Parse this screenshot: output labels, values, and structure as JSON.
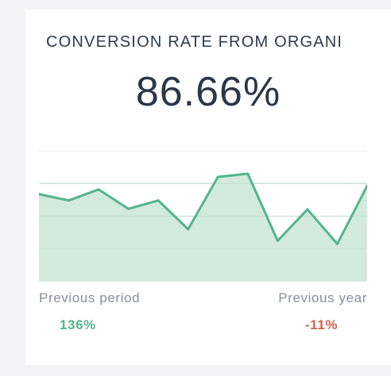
{
  "widget": {
    "title": "CONVERSION RATE FROM ORGANI",
    "value": "86.66%"
  },
  "comparison": {
    "previous_period_label": "Previous period",
    "previous_period_value": "136%",
    "previous_year_label": "Previous year",
    "previous_year_value": "-11%"
  },
  "chart_data": {
    "type": "area",
    "x": [
      0,
      1,
      2,
      3,
      4,
      5,
      6,
      7,
      8,
      9,
      10,
      11
    ],
    "values": [
      8.35,
      7.75,
      8.8,
      6.95,
      7.75,
      5.0,
      10.0,
      10.3,
      3.9,
      6.9,
      3.6,
      9.15
    ],
    "ylim": [
      0,
      12.5
    ],
    "grid": true,
    "colors": {
      "line": "#54b48d",
      "fill": "#d3eade",
      "grid": "#dcdcdc"
    }
  }
}
